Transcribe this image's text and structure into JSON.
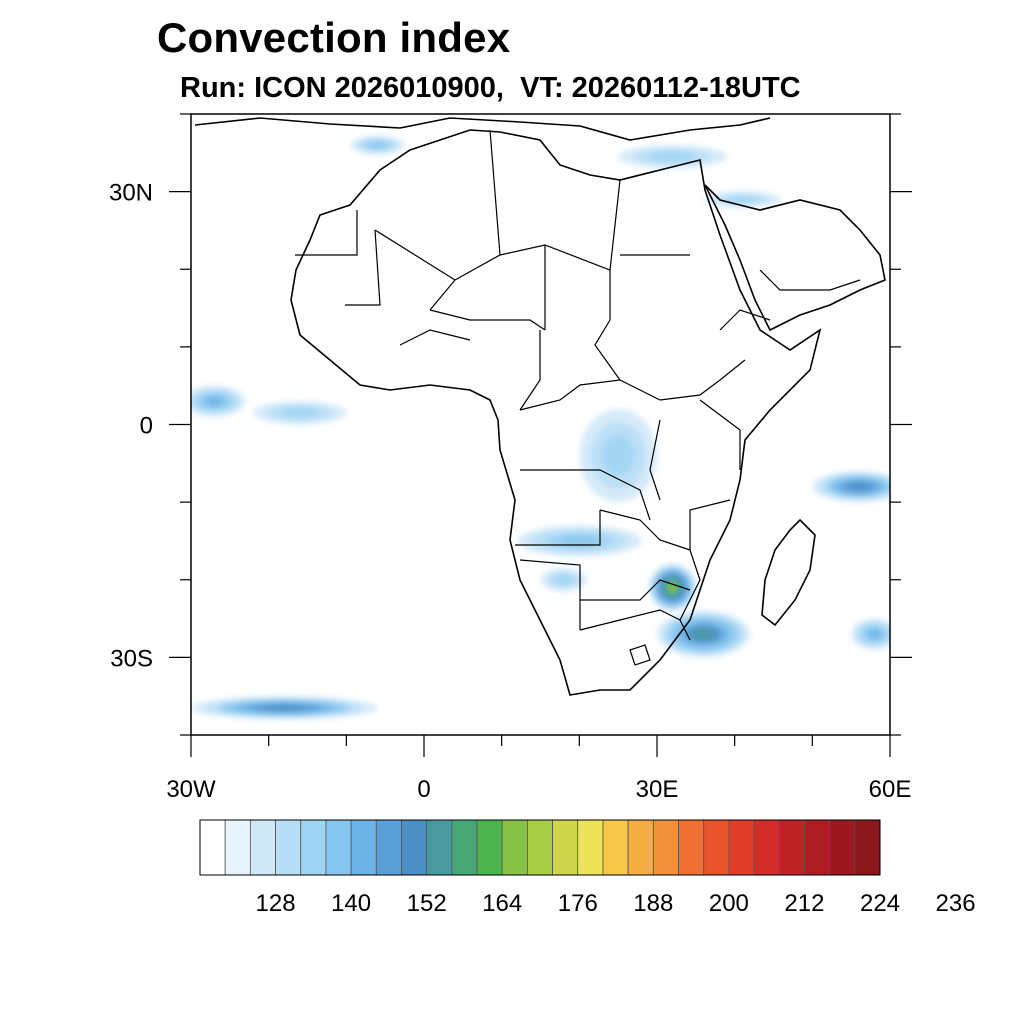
{
  "title": "Convection index",
  "subtitle": "Run: ICON 2026010900,  VT: 20260112-18UTC",
  "map": {
    "lon_range": [
      -30,
      60
    ],
    "lat_range": [
      -40,
      40
    ],
    "x_ticks": [
      {
        "lon": -30,
        "label": "30W"
      },
      {
        "lon": 0,
        "label": "0"
      },
      {
        "lon": 30,
        "label": "30E"
      },
      {
        "lon": 60,
        "label": "60E"
      }
    ],
    "y_ticks": [
      {
        "lat": 30,
        "label": "30N"
      },
      {
        "lat": 0,
        "label": "0"
      },
      {
        "lat": -30,
        "label": "30S"
      }
    ],
    "convection_cells": [
      {
        "name": "mediterranean-band",
        "lon": -6,
        "lat": 36,
        "w": 3.5,
        "h": 1.2,
        "level": 4
      },
      {
        "name": "eastern-med-band",
        "lon": 32,
        "lat": 34.5,
        "w": 7,
        "h": 1.5,
        "level": 3
      },
      {
        "name": "middle-east-band",
        "lon": 41,
        "lat": 29,
        "w": 5,
        "h": 1,
        "level": 3
      },
      {
        "name": "atlantic-equatorial-west",
        "lon": -27,
        "lat": 3,
        "w": 4,
        "h": 2,
        "level": 5
      },
      {
        "name": "atlantic-equatorial-mid",
        "lon": -16,
        "lat": 1.5,
        "w": 6,
        "h": 1.5,
        "level": 3
      },
      {
        "name": "congo-basin",
        "lon": 25,
        "lat": -4,
        "w": 5,
        "h": 6,
        "level": 3
      },
      {
        "name": "angola-zambia",
        "lon": 20,
        "lat": -15,
        "w": 8,
        "h": 2,
        "level": 4
      },
      {
        "name": "mozambique-core",
        "lon": 32,
        "lat": -21,
        "w": 3,
        "h": 3,
        "level": 11
      },
      {
        "name": "south-africa-east",
        "lon": 36,
        "lat": -27,
        "w": 6,
        "h": 3,
        "level": 8
      },
      {
        "name": "indian-ocean-east",
        "lon": 56,
        "lat": -8,
        "w": 6,
        "h": 2,
        "level": 7
      },
      {
        "name": "indian-ocean-south",
        "lon": 58,
        "lat": -27,
        "w": 3,
        "h": 2,
        "level": 5
      },
      {
        "name": "south-atlantic-band",
        "lon": -18,
        "lat": -36.5,
        "w": 12,
        "h": 1.5,
        "level": 7
      },
      {
        "name": "botswana-namibia",
        "lon": 18,
        "lat": -20,
        "w": 3,
        "h": 1.5,
        "level": 3
      }
    ]
  },
  "colorbar": {
    "colors": [
      "#ffffff",
      "#e8f4fc",
      "#cfe8f8",
      "#b8def7",
      "#a0d4f5",
      "#86c6ef",
      "#6cb2e4",
      "#5a9fd6",
      "#4b8fc4",
      "#4a9aa0",
      "#48a779",
      "#4cb44d",
      "#86c247",
      "#aacd47",
      "#cfd64c",
      "#eee45a",
      "#f6c94b",
      "#f5ae43",
      "#f3913a",
      "#ef7032",
      "#e8542b",
      "#e03e2a",
      "#d42c2a",
      "#c02326",
      "#ae1d22",
      "#9c1a1f",
      "#8a171c"
    ],
    "labels": [
      "128",
      "140",
      "152",
      "164",
      "176",
      "188",
      "200",
      "212",
      "224",
      "236"
    ]
  }
}
